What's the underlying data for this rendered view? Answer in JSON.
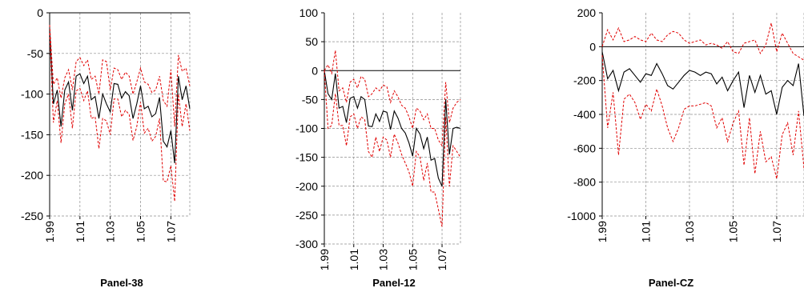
{
  "chart_data": [
    {
      "type": "line",
      "title": "Panel-38",
      "ylim": [
        -250,
        0
      ],
      "yticks": [
        0,
        -50,
        -100,
        -150,
        -200,
        -250
      ],
      "xlim": [
        0,
        37
      ],
      "xtick_labels": [
        "1.99",
        "1.01",
        "1.03",
        "1.05",
        "1.07"
      ],
      "xtick_positions": [
        0,
        8,
        16,
        24,
        32
      ],
      "grid": true,
      "series": [
        {
          "color": "#000000",
          "dashed": false,
          "values": [
            -20,
            -112,
            -95,
            -140,
            -95,
            -85,
            -120,
            -78,
            -75,
            -87,
            -78,
            -107,
            -103,
            -130,
            -100,
            -112,
            -122,
            -87,
            -88,
            -105,
            -97,
            -102,
            -130,
            -112,
            -90,
            -118,
            -115,
            -128,
            -124,
            -104,
            -158,
            -165,
            -145,
            -185,
            -78,
            -107,
            -90,
            -118
          ]
        },
        {
          "color": "#e00000",
          "dashed": true,
          "values": [
            -15,
            -88,
            -80,
            -105,
            -80,
            -70,
            -95,
            -60,
            -55,
            -65,
            -58,
            -82,
            -78,
            -100,
            -58,
            -60,
            -95,
            -68,
            -70,
            -82,
            -73,
            -78,
            -100,
            -85,
            -68,
            -85,
            -88,
            -98,
            -95,
            -78,
            -108,
            -115,
            -70,
            -140,
            -52,
            -72,
            -68,
            -90
          ]
        },
        {
          "color": "#e00000",
          "dashed": true,
          "values": [
            -25,
            -135,
            -108,
            -160,
            -112,
            -100,
            -142,
            -96,
            -93,
            -108,
            -96,
            -130,
            -128,
            -167,
            -130,
            -133,
            -150,
            -106,
            -106,
            -128,
            -120,
            -125,
            -157,
            -140,
            -110,
            -148,
            -142,
            -158,
            -152,
            -130,
            -207,
            -208,
            -188,
            -232,
            -100,
            -140,
            -112,
            -145
          ]
        }
      ]
    },
    {
      "type": "line",
      "title": "Panel-12",
      "ylim": [
        -300,
        100
      ],
      "yticks": [
        100,
        50,
        0,
        -50,
        -100,
        -150,
        -200,
        -250,
        -300
      ],
      "xlim": [
        0,
        37
      ],
      "xtick_labels": [
        "1.99",
        "1.01",
        "1.03",
        "1.05",
        "1.07"
      ],
      "xtick_positions": [
        0,
        8,
        16,
        24,
        32
      ],
      "grid": true,
      "series": [
        {
          "color": "#000000",
          "dashed": false,
          "values": [
            0,
            -40,
            -50,
            -5,
            -65,
            -62,
            -90,
            -48,
            -45,
            -65,
            -45,
            -50,
            -96,
            -97,
            -75,
            -88,
            -70,
            -72,
            -102,
            -70,
            -82,
            -100,
            -108,
            -125,
            -148,
            -100,
            -110,
            -135,
            -115,
            -155,
            -152,
            -186,
            -200,
            -50,
            -145,
            -100,
            -98,
            -100
          ]
        },
        {
          "color": "#e00000",
          "dashed": true,
          "values": [
            0,
            10,
            -5,
            35,
            -35,
            -30,
            -55,
            -20,
            -15,
            -30,
            -10,
            -15,
            -45,
            -40,
            -30,
            -35,
            -25,
            -28,
            -55,
            -35,
            -45,
            -60,
            -65,
            -80,
            -100,
            -65,
            -70,
            -85,
            -75,
            -100,
            -100,
            -120,
            -130,
            -20,
            -90,
            -65,
            -55,
            -50
          ]
        },
        {
          "color": "#e00000",
          "dashed": true,
          "values": [
            0,
            -100,
            -95,
            -40,
            -95,
            -95,
            -130,
            -80,
            -75,
            -100,
            -80,
            -85,
            -140,
            -150,
            -115,
            -140,
            -115,
            -120,
            -150,
            -110,
            -125,
            -145,
            -160,
            -175,
            -200,
            -140,
            -150,
            -190,
            -160,
            -210,
            -210,
            -240,
            -270,
            -80,
            -200,
            -130,
            -140,
            -150
          ]
        }
      ]
    },
    {
      "type": "line",
      "title": "Panel-CZ",
      "ylim": [
        -1000,
        200
      ],
      "yticks": [
        200,
        0,
        -200,
        -400,
        -600,
        -800,
        -1000
      ],
      "xlim": [
        0,
        37
      ],
      "xtick_labels": [
        "1.99",
        "1.01",
        "1.03",
        "1.05",
        "1.07"
      ],
      "xtick_positions": [
        0,
        8,
        16,
        24,
        32
      ],
      "grid": true,
      "series": [
        {
          "color": "#000000",
          "dashed": false,
          "values": [
            -30,
            -190,
            -140,
            -260,
            -150,
            -130,
            -170,
            -210,
            -160,
            -170,
            -100,
            -160,
            -230,
            -250,
            -210,
            -170,
            -140,
            -150,
            -170,
            -150,
            -160,
            -220,
            -180,
            -260,
            -200,
            -150,
            -360,
            -170,
            -270,
            -170,
            -280,
            -260,
            -400,
            -240,
            -200,
            -230,
            -100,
            -410
          ]
        },
        {
          "color": "#e00000",
          "dashed": true,
          "values": [
            0,
            100,
            40,
            110,
            30,
            40,
            60,
            40,
            30,
            80,
            40,
            30,
            70,
            90,
            80,
            40,
            20,
            30,
            40,
            10,
            20,
            10,
            -10,
            30,
            -30,
            -40,
            20,
            30,
            40,
            -40,
            10,
            140,
            -30,
            80,
            20,
            -40,
            -60,
            -80
          ]
        },
        {
          "color": "#e00000",
          "dashed": true,
          "values": [
            -50,
            -480,
            -270,
            -640,
            -310,
            -280,
            -330,
            -430,
            -340,
            -380,
            -250,
            -350,
            -480,
            -560,
            -480,
            -370,
            -350,
            -350,
            -340,
            -330,
            -350,
            -480,
            -420,
            -560,
            -450,
            -380,
            -700,
            -420,
            -750,
            -500,
            -680,
            -650,
            -780,
            -520,
            -450,
            -640,
            -380,
            -720
          ]
        }
      ]
    }
  ]
}
